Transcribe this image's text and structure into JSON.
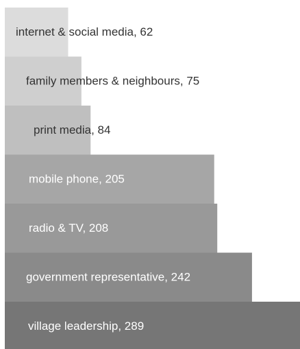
{
  "chart_data": {
    "type": "bar",
    "orientation": "horizontal",
    "title": "",
    "xlabel": "",
    "ylabel": "",
    "grid": false,
    "legend": "none",
    "categories": [
      "internet & social media",
      "family members & neighbours",
      "print media",
      "mobile phone",
      "radio & TV",
      "government representative",
      "village leadership"
    ],
    "values": [
      62,
      75,
      84,
      205,
      208,
      242,
      289
    ],
    "data_labels": [
      "internet & social media, 62",
      "family members & neighbours, 75",
      "print media, 84",
      "mobile phone, 205",
      "radio & TV, 208",
      "government representative, 242",
      "village leadership, 289"
    ],
    "xlim": [
      0,
      289
    ],
    "colors": [
      "#dcdcdc",
      "#cfcfcf",
      "#bfbfbf",
      "#a6a6a6",
      "#999999",
      "#8a8a8a",
      "#767676"
    ],
    "label_colors": [
      "#333333",
      "#333333",
      "#333333",
      "#ffffff",
      "#ffffff",
      "#ffffff",
      "#ffffff"
    ]
  }
}
